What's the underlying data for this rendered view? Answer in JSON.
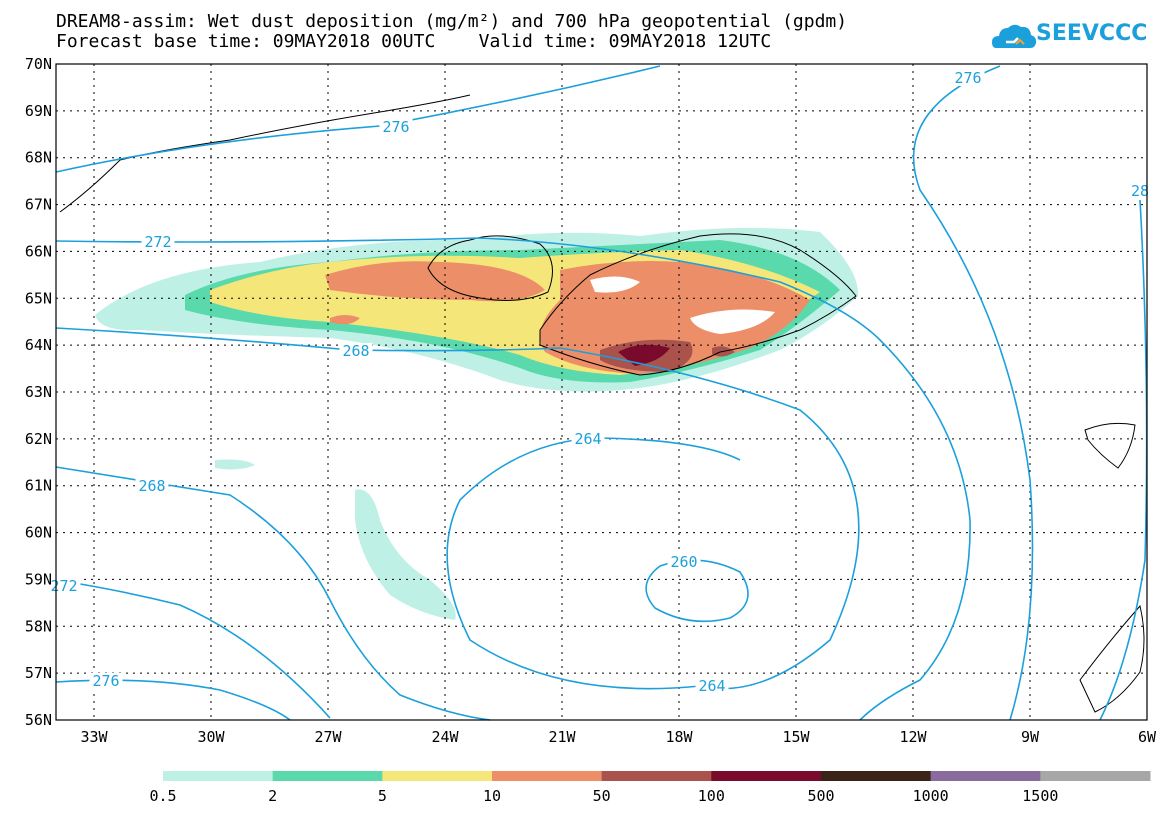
{
  "title": {
    "line1": "DREAM8-assim: Wet dust deposition (mg/m²) and 700 hPa geopotential (gpdm)",
    "line2": "Forecast base time: 09MAY2018 00UTC    Valid time: 09MAY2018 12UTC"
  },
  "logo": {
    "text": "SEEVCCC",
    "icon": "cloud-icon"
  },
  "axes": {
    "lat_labels": [
      "70N",
      "69N",
      "68N",
      "67N",
      "66N",
      "65N",
      "64N",
      "63N",
      "62N",
      "61N",
      "60N",
      "59N",
      "58N",
      "57N",
      "56N"
    ],
    "lon_labels": [
      "33W",
      "30W",
      "27W",
      "24W",
      "21W",
      "18W",
      "15W",
      "12W",
      "9W",
      "6W"
    ]
  },
  "contours": {
    "color": "#1ca0dc",
    "labels": [
      "276",
      "276",
      "272",
      "268",
      "268",
      "264",
      "260",
      "264",
      "272",
      "276",
      "28"
    ]
  },
  "colorbar": {
    "colors": [
      "#bff0e6",
      "#5ad9ad",
      "#f5e67a",
      "#ec8f68",
      "#a9534c",
      "#7a0a2c",
      "#3b2417",
      "#8a6b9e",
      "#a7a7a7"
    ],
    "labels": [
      "0.5",
      "2",
      "5",
      "10",
      "50",
      "100",
      "500",
      "1000",
      "1500"
    ]
  }
}
